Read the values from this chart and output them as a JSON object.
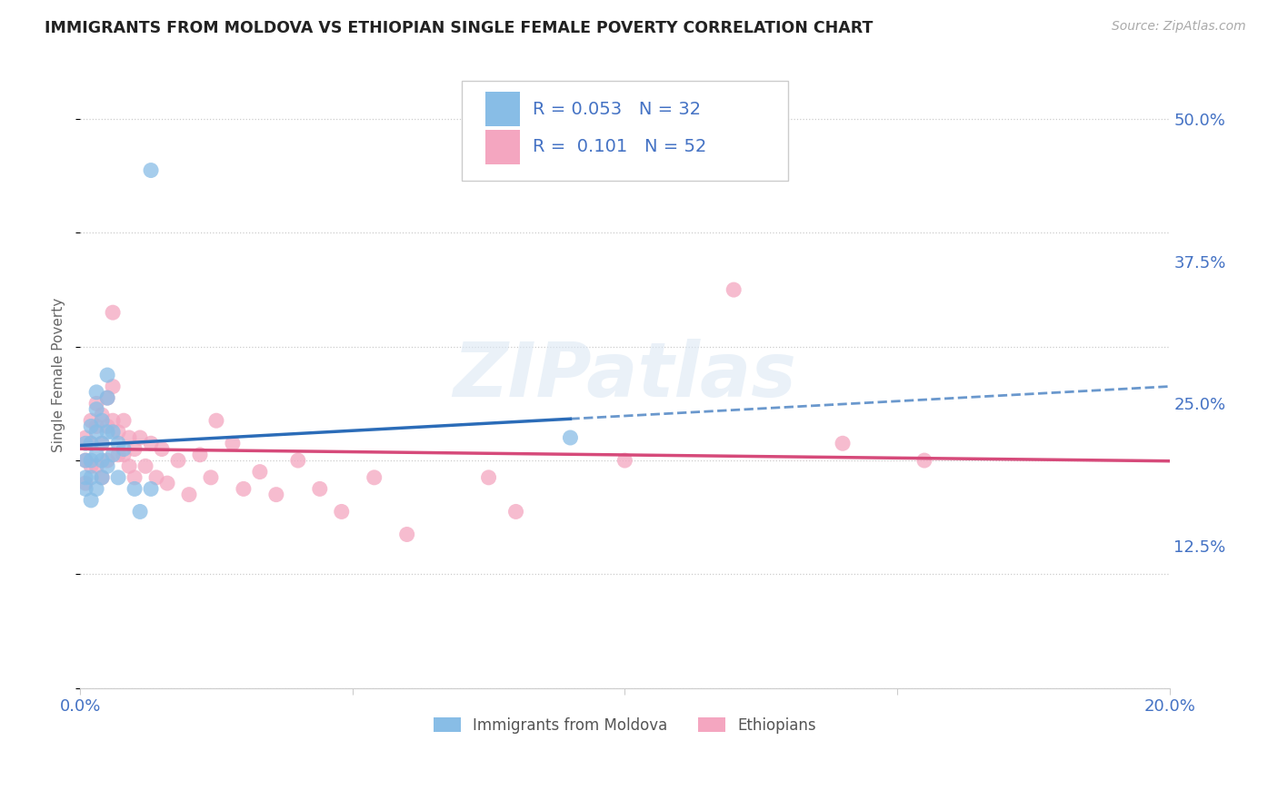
{
  "title": "IMMIGRANTS FROM MOLDOVA VS ETHIOPIAN SINGLE FEMALE POVERTY CORRELATION CHART",
  "source": "Source: ZipAtlas.com",
  "ylabel": "Single Female Poverty",
  "xlim": [
    0.0,
    0.2
  ],
  "ylim": [
    0.0,
    0.55
  ],
  "yticks": [
    0.125,
    0.25,
    0.375,
    0.5
  ],
  "ytick_labels": [
    "12.5%",
    "25.0%",
    "37.5%",
    "50.0%"
  ],
  "xticks": [
    0.0,
    0.05,
    0.1,
    0.15,
    0.2
  ],
  "xtick_labels": [
    "0.0%",
    "",
    "",
    "",
    "20.0%"
  ],
  "legend_label1": "Immigrants from Moldova",
  "legend_label2": "Ethiopians",
  "r1": "0.053",
  "n1": "32",
  "r2": "0.101",
  "n2": "52",
  "color_blue": "#88bde6",
  "color_pink": "#f4a6c0",
  "color_blue_line": "#2b6cb8",
  "color_pink_line": "#d64a7a",
  "color_axis_label": "#4472c4",
  "watermark": "ZIPatlas",
  "moldova_x": [
    0.001,
    0.001,
    0.001,
    0.001,
    0.002,
    0.002,
    0.002,
    0.002,
    0.002,
    0.003,
    0.003,
    0.003,
    0.003,
    0.003,
    0.004,
    0.004,
    0.004,
    0.004,
    0.005,
    0.005,
    0.005,
    0.005,
    0.006,
    0.006,
    0.007,
    0.007,
    0.008,
    0.01,
    0.011,
    0.013,
    0.09,
    0.013
  ],
  "moldova_y": [
    0.215,
    0.2,
    0.185,
    0.175,
    0.23,
    0.215,
    0.2,
    0.185,
    0.165,
    0.26,
    0.245,
    0.225,
    0.205,
    0.175,
    0.235,
    0.215,
    0.2,
    0.185,
    0.275,
    0.255,
    0.225,
    0.195,
    0.225,
    0.205,
    0.215,
    0.185,
    0.21,
    0.175,
    0.155,
    0.175,
    0.22,
    0.455
  ],
  "ethiopia_x": [
    0.001,
    0.001,
    0.001,
    0.002,
    0.002,
    0.002,
    0.003,
    0.003,
    0.003,
    0.004,
    0.004,
    0.004,
    0.005,
    0.005,
    0.005,
    0.006,
    0.006,
    0.006,
    0.007,
    0.007,
    0.008,
    0.008,
    0.009,
    0.009,
    0.01,
    0.01,
    0.011,
    0.012,
    0.013,
    0.014,
    0.015,
    0.016,
    0.018,
    0.02,
    0.022,
    0.024,
    0.025,
    0.028,
    0.03,
    0.033,
    0.036,
    0.04,
    0.044,
    0.048,
    0.054,
    0.06,
    0.075,
    0.08,
    0.1,
    0.12,
    0.14,
    0.155
  ],
  "ethiopia_y": [
    0.22,
    0.2,
    0.18,
    0.235,
    0.215,
    0.195,
    0.25,
    0.23,
    0.195,
    0.24,
    0.215,
    0.185,
    0.255,
    0.23,
    0.2,
    0.265,
    0.235,
    0.33,
    0.225,
    0.205,
    0.235,
    0.205,
    0.22,
    0.195,
    0.21,
    0.185,
    0.22,
    0.195,
    0.215,
    0.185,
    0.21,
    0.18,
    0.2,
    0.17,
    0.205,
    0.185,
    0.235,
    0.215,
    0.175,
    0.19,
    0.17,
    0.2,
    0.175,
    0.155,
    0.185,
    0.135,
    0.185,
    0.155,
    0.2,
    0.35,
    0.215,
    0.2
  ]
}
